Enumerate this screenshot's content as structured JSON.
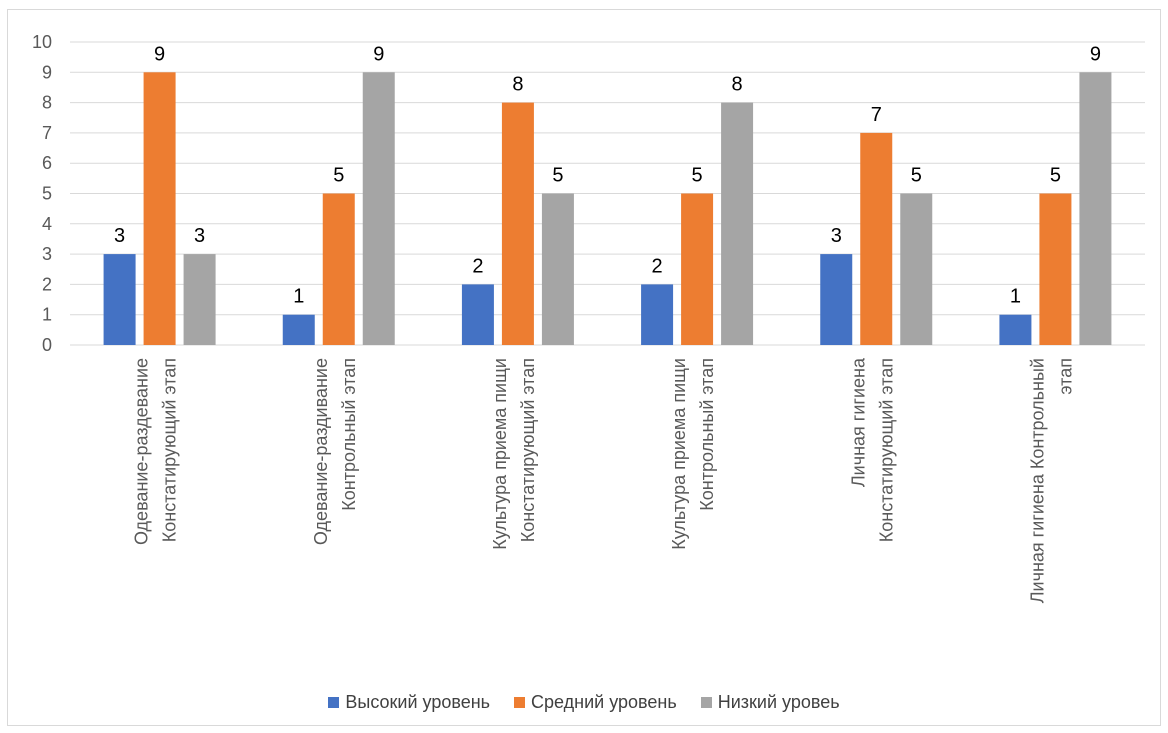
{
  "chart_data": {
    "type": "bar",
    "categories": [
      [
        "Одевание-раздевание",
        "Констатирующий этап"
      ],
      [
        "Одевание-раздивание",
        "Контрольный этап"
      ],
      [
        "Культура приема пищи",
        "Констатирующий этап"
      ],
      [
        "Культура приема пищи",
        "Контрольный этап"
      ],
      [
        "Личная гигиена",
        "Констатирующий этап"
      ],
      [
        "Личная гигиена Контрольный",
        "этап"
      ]
    ],
    "series": [
      {
        "name": "Высокий уровень",
        "color": "#4472c4",
        "values": [
          3,
          1,
          2,
          2,
          3,
          1
        ]
      },
      {
        "name": "Средний уровень",
        "color": "#ed7d31",
        "values": [
          9,
          5,
          8,
          5,
          7,
          5
        ]
      },
      {
        "name": "Низкий уровеь",
        "color": "#a5a5a5",
        "values": [
          3,
          9,
          5,
          8,
          5,
          9
        ]
      }
    ],
    "ylim": [
      0,
      10
    ],
    "yticks": [
      "0",
      "1",
      "2",
      "3",
      "4",
      "5",
      "6",
      "7",
      "8",
      "9",
      "10"
    ],
    "grid": true,
    "legend_position": "bottom"
  }
}
